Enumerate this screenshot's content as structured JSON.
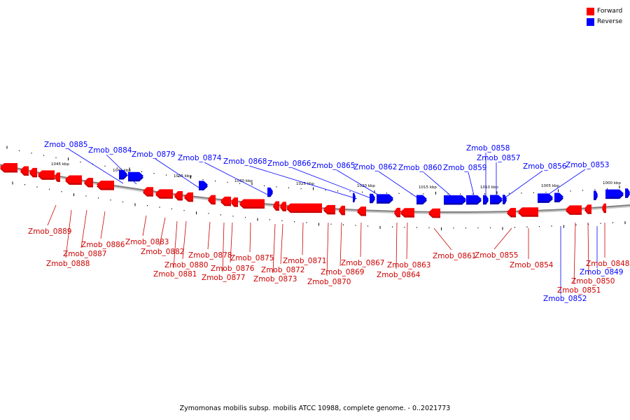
{
  "legend": {
    "items": [
      {
        "label": "Forward",
        "color": "#ff0000"
      },
      {
        "label": "Reverse",
        "color": "#0000ff"
      }
    ]
  },
  "caption": "Zymomonas mobilis subsp. mobilis ATCC 10988, complete genome. - 0..2021773",
  "colors": {
    "forward": "#ff0000",
    "forward_shade": "#c80000",
    "reverse": "#0000ff",
    "reverse_shade": "#0000b4",
    "backbone": "#808080"
  },
  "scale_labels": [
    "1045 kbp",
    "1040 kbp",
    "1035 kbp",
    "1030 kbp",
    "1025 kbp",
    "1020 kbp",
    "1015 kbp",
    "1010 kbp",
    "1005 kbp",
    "1000 kbp"
  ],
  "genes": {
    "reverse": [
      "Zmob_0885",
      "Zmob_0884",
      "Zmob_0879",
      "Zmob_0874",
      "Zmob_0868",
      "Zmob_0866",
      "Zmob_0865",
      "Zmob_0862",
      "Zmob_0860",
      "Zmob_0859",
      "Zmob_0858",
      "Zmob_0857",
      "Zmob_0856",
      "Zmob_0853",
      "Zmob_0849",
      "Zmob_0852"
    ],
    "forward": [
      "Zmob_0889",
      "Zmob_0887",
      "Zmob_0888",
      "Zmob_0886",
      "Zmob_0883",
      "Zmob_0882",
      "Zmob_0880",
      "Zmob_0881",
      "Zmob_0878",
      "Zmob_0876",
      "Zmob_0877",
      "Zmob_0875",
      "Zmob_0872",
      "Zmob_0873",
      "Zmob_0871",
      "Zmob_0869",
      "Zmob_0870",
      "Zmob_0867",
      "Zmob_0863",
      "Zmob_0864",
      "Zmob_0861",
      "Zmob_0855",
      "Zmob_0854",
      "Zmob_0848",
      "Zmob_0850",
      "Zmob_0851"
    ]
  }
}
